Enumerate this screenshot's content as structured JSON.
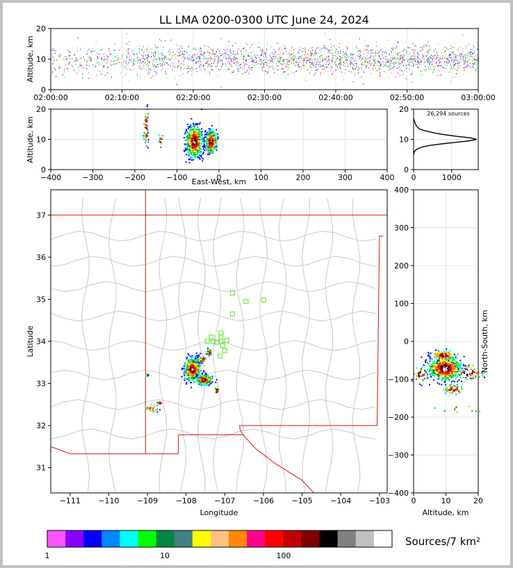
{
  "title": "LL LMA 0200-0300 UTC June 24, 2024",
  "sources_label": "26,294 sources",
  "colorbar_label": "Sources/7 km²",
  "colors": {
    "county_lines": "#c8c8c8",
    "state_lines": "#e01010",
    "stations": "#66ee33",
    "grid": "#e4e4e4"
  },
  "chart_data": [
    {
      "id": "time_height",
      "type": "scatter",
      "xlabel": "",
      "ylabel": "Altitude, km",
      "xlim": [
        "02:00:00",
        "03:00:00"
      ],
      "ylim": [
        0,
        20
      ],
      "x_ticks": [
        "02:00:00",
        "02:10:00",
        "02:20:00",
        "02:30:00",
        "02:40:00",
        "02:50:00",
        "03:00:00"
      ],
      "y_ticks": [
        "0",
        "10",
        "20"
      ],
      "mean_altitude_km": 10
    },
    {
      "id": "ew_height",
      "type": "heatmap",
      "xlabel": "East-West, km",
      "ylabel": "Altitude, km",
      "xlim": [
        -400,
        400
      ],
      "ylim": [
        0,
        20
      ],
      "x_ticks": [
        "−400",
        "−300",
        "−200",
        "−100",
        "0",
        "100",
        "200",
        "300",
        "400"
      ],
      "y_ticks": [
        "0",
        "10",
        "20"
      ],
      "clusters": [
        {
          "x_km": -60,
          "z_km": 9.5,
          "sx": 9,
          "sz": 2.5,
          "n": 700
        },
        {
          "x_km": -20,
          "z_km": 9.5,
          "sx": 6,
          "sz": 1.8,
          "n": 350
        },
        {
          "x_km": -175,
          "z_km": 14,
          "sx": 3,
          "sz": 3,
          "n": 60
        },
        {
          "x_km": -140,
          "z_km": 10,
          "sx": 2,
          "sz": 1.5,
          "n": 15
        }
      ]
    },
    {
      "id": "height_histogram",
      "type": "line",
      "xlabel": "",
      "ylabel": "",
      "xlim": [
        0,
        1700
      ],
      "ylim": [
        0,
        20
      ],
      "x_ticks": [
        "0",
        "1000"
      ],
      "y_ticks": [
        "0",
        "10",
        "20"
      ],
      "x": [
        0,
        20,
        60,
        120,
        230,
        420,
        730,
        1100,
        1450,
        1660,
        1500,
        1150,
        850,
        600,
        420,
        260,
        150,
        70,
        20,
        0
      ],
      "y": [
        5,
        6,
        6.5,
        7,
        7.5,
        8,
        8.5,
        9,
        9.5,
        10,
        10.5,
        11,
        11.5,
        12,
        12.5,
        13,
        13.5,
        14.5,
        16,
        17
      ]
    },
    {
      "id": "plan_view",
      "type": "heatmap",
      "xlabel": "Longitude",
      "ylabel": "Latitude",
      "xlim": [
        -111.5,
        -102.8
      ],
      "ylim": [
        30.4,
        37.6
      ],
      "x_ticks": [
        "−111",
        "−110",
        "−109",
        "−108",
        "−107",
        "−106",
        "−105",
        "−104",
        "−103"
      ],
      "y_ticks": [
        "31",
        "32",
        "33",
        "34",
        "35",
        "36",
        "37"
      ],
      "stations": [
        [
          -106.8,
          35.15
        ],
        [
          -106.45,
          34.95
        ],
        [
          -106.0,
          34.98
        ],
        [
          -106.8,
          34.65
        ],
        [
          -107.1,
          34.2
        ],
        [
          -107.35,
          34.1
        ],
        [
          -107.1,
          34.1
        ],
        [
          -107.45,
          34.0
        ],
        [
          -107.3,
          34.0
        ],
        [
          -107.2,
          33.98
        ],
        [
          -107.1,
          34.0
        ],
        [
          -106.95,
          34.02
        ],
        [
          -107.05,
          33.9
        ],
        [
          -107.0,
          33.78
        ],
        [
          -107.12,
          33.65
        ]
      ],
      "clusters": [
        {
          "lon": -107.85,
          "lat": 33.35,
          "slon": 0.1,
          "slat": 0.13,
          "n": 600
        },
        {
          "lon": -107.55,
          "lat": 33.1,
          "slon": 0.09,
          "slat": 0.06,
          "n": 280
        },
        {
          "lon": -107.62,
          "lat": 33.58,
          "slon": 0.06,
          "slat": 0.03,
          "n": 60
        },
        {
          "lon": -107.42,
          "lat": 33.75,
          "slon": 0.03,
          "slat": 0.04,
          "n": 40
        },
        {
          "lon": -107.22,
          "lat": 32.85,
          "slon": 0.02,
          "slat": 0.05,
          "n": 25
        },
        {
          "lon": -108.9,
          "lat": 32.42,
          "slon": 0.08,
          "slat": 0.05,
          "n": 30
        },
        {
          "lon": -108.7,
          "lat": 32.55,
          "slon": 0.05,
          "slat": 0.02,
          "n": 10
        },
        {
          "lon": -109.02,
          "lat": 33.22,
          "slon": 0.02,
          "slat": 0.02,
          "n": 6
        }
      ]
    },
    {
      "id": "ns_height",
      "type": "heatmap",
      "xlabel": "Altitude, km",
      "ylabel": "North-South, km",
      "xlim": [
        0,
        20
      ],
      "ylim": [
        -400,
        400
      ],
      "x_ticks": [
        "0",
        "10",
        "20"
      ],
      "y_ticks": [
        "400",
        "300",
        "200",
        "100",
        "0",
        "−100",
        "−200",
        "−300",
        "−400"
      ],
      "clusters": [
        {
          "z_km": 9.5,
          "y_km": -70,
          "sz": 2.5,
          "sy": 15,
          "n": 700
        },
        {
          "z_km": 9,
          "y_km": -35,
          "sz": 2,
          "sy": 6,
          "n": 120
        },
        {
          "z_km": 12,
          "y_km": -125,
          "sz": 1.5,
          "sy": 6,
          "n": 60
        },
        {
          "z_km": 17,
          "y_km": -80,
          "sz": 2.5,
          "sy": 10,
          "n": 60
        },
        {
          "z_km": 2,
          "y_km": -85,
          "sz": 1.2,
          "sy": 10,
          "n": 40
        },
        {
          "z_km": 14,
          "y_km": -175,
          "sz": 4,
          "sy": 6,
          "n": 12
        }
      ]
    }
  ],
  "colorbar": {
    "colors": [
      "#ff55ff",
      "#8800ff",
      "#0000ff",
      "#0088ff",
      "#00ffff",
      "#00ff00",
      "#008844",
      "#448080",
      "#ffff00",
      "#ffc080",
      "#ff8800",
      "#ff0088",
      "#ff0000",
      "#c00000",
      "#800000",
      "#000000",
      "#808080",
      "#c0c0c0",
      "#ffffff"
    ],
    "tick_labels": [
      "1",
      "10",
      "100"
    ]
  }
}
